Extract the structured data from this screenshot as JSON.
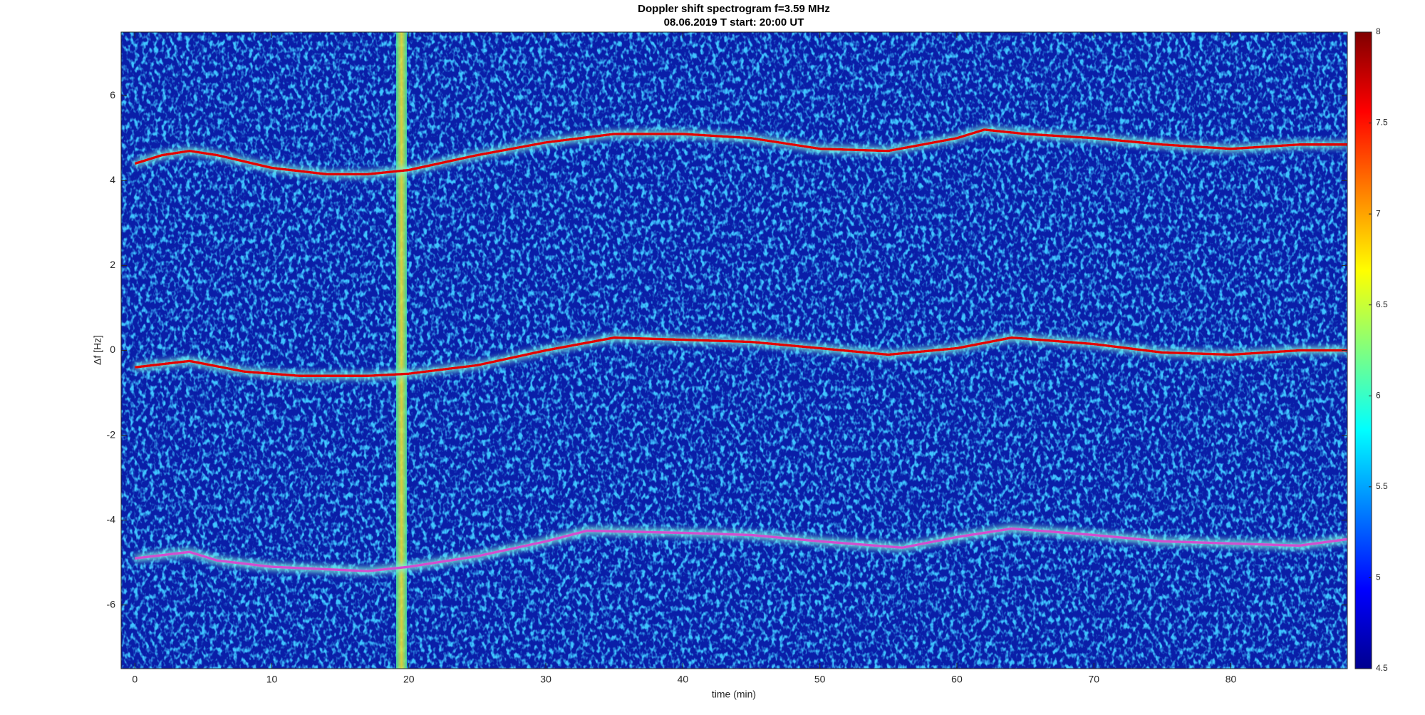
{
  "chart_data": {
    "type": "spectrogram",
    "title": "Doppler shift spectrogram f=3.59 MHz",
    "subtitle": "08.06.2019    T start: 20:00 UT",
    "xlabel": "time (min)",
    "ylabel": "Δf [Hz]",
    "xlim": [
      -1,
      88.5
    ],
    "xticks": [
      0,
      10,
      20,
      30,
      40,
      50,
      60,
      70,
      80
    ],
    "ylim": [
      -7.5,
      7.5
    ],
    "yticks": [
      -6,
      -4,
      -2,
      0,
      2,
      4,
      6
    ],
    "clim": [
      4.5,
      8
    ],
    "cticks": [
      4.5,
      5,
      5.5,
      6,
      6.5,
      7,
      7.5,
      8
    ],
    "colormap": "jet",
    "series": [
      {
        "color": "#e00000",
        "x": [
          0,
          2,
          4,
          6,
          10,
          14,
          17,
          20,
          25,
          30,
          35,
          40,
          45,
          50,
          55,
          60,
          62,
          65,
          70,
          75,
          80,
          85,
          88.5
        ],
        "values": [
          4.4,
          4.6,
          4.7,
          4.6,
          4.3,
          4.15,
          4.15,
          4.25,
          4.6,
          4.9,
          5.1,
          5.1,
          5.0,
          4.75,
          4.7,
          5.0,
          5.2,
          5.1,
          5.0,
          4.85,
          4.75,
          4.85,
          4.85
        ]
      },
      {
        "color": "#e00000",
        "x": [
          0,
          4,
          8,
          12,
          17,
          20,
          25,
          30,
          35,
          40,
          45,
          50,
          55,
          60,
          64,
          70,
          75,
          80,
          85,
          88.5
        ],
        "values": [
          -0.4,
          -0.25,
          -0.5,
          -0.6,
          -0.6,
          -0.55,
          -0.35,
          0.0,
          0.3,
          0.25,
          0.2,
          0.05,
          -0.1,
          0.05,
          0.3,
          0.15,
          -0.05,
          -0.1,
          0.0,
          0.0
        ]
      },
      {
        "color": "#d050d0",
        "x": [
          0,
          4,
          6,
          10,
          17,
          20,
          25,
          30,
          33,
          40,
          45,
          50,
          56,
          60,
          64,
          70,
          75,
          80,
          85,
          88.5
        ],
        "values": [
          -4.9,
          -4.75,
          -4.95,
          -5.1,
          -5.2,
          -5.1,
          -4.85,
          -4.5,
          -4.25,
          -4.3,
          -4.35,
          -4.5,
          -4.65,
          -4.4,
          -4.2,
          -4.35,
          -4.5,
          -4.55,
          -4.6,
          -4.45
        ]
      }
    ]
  }
}
